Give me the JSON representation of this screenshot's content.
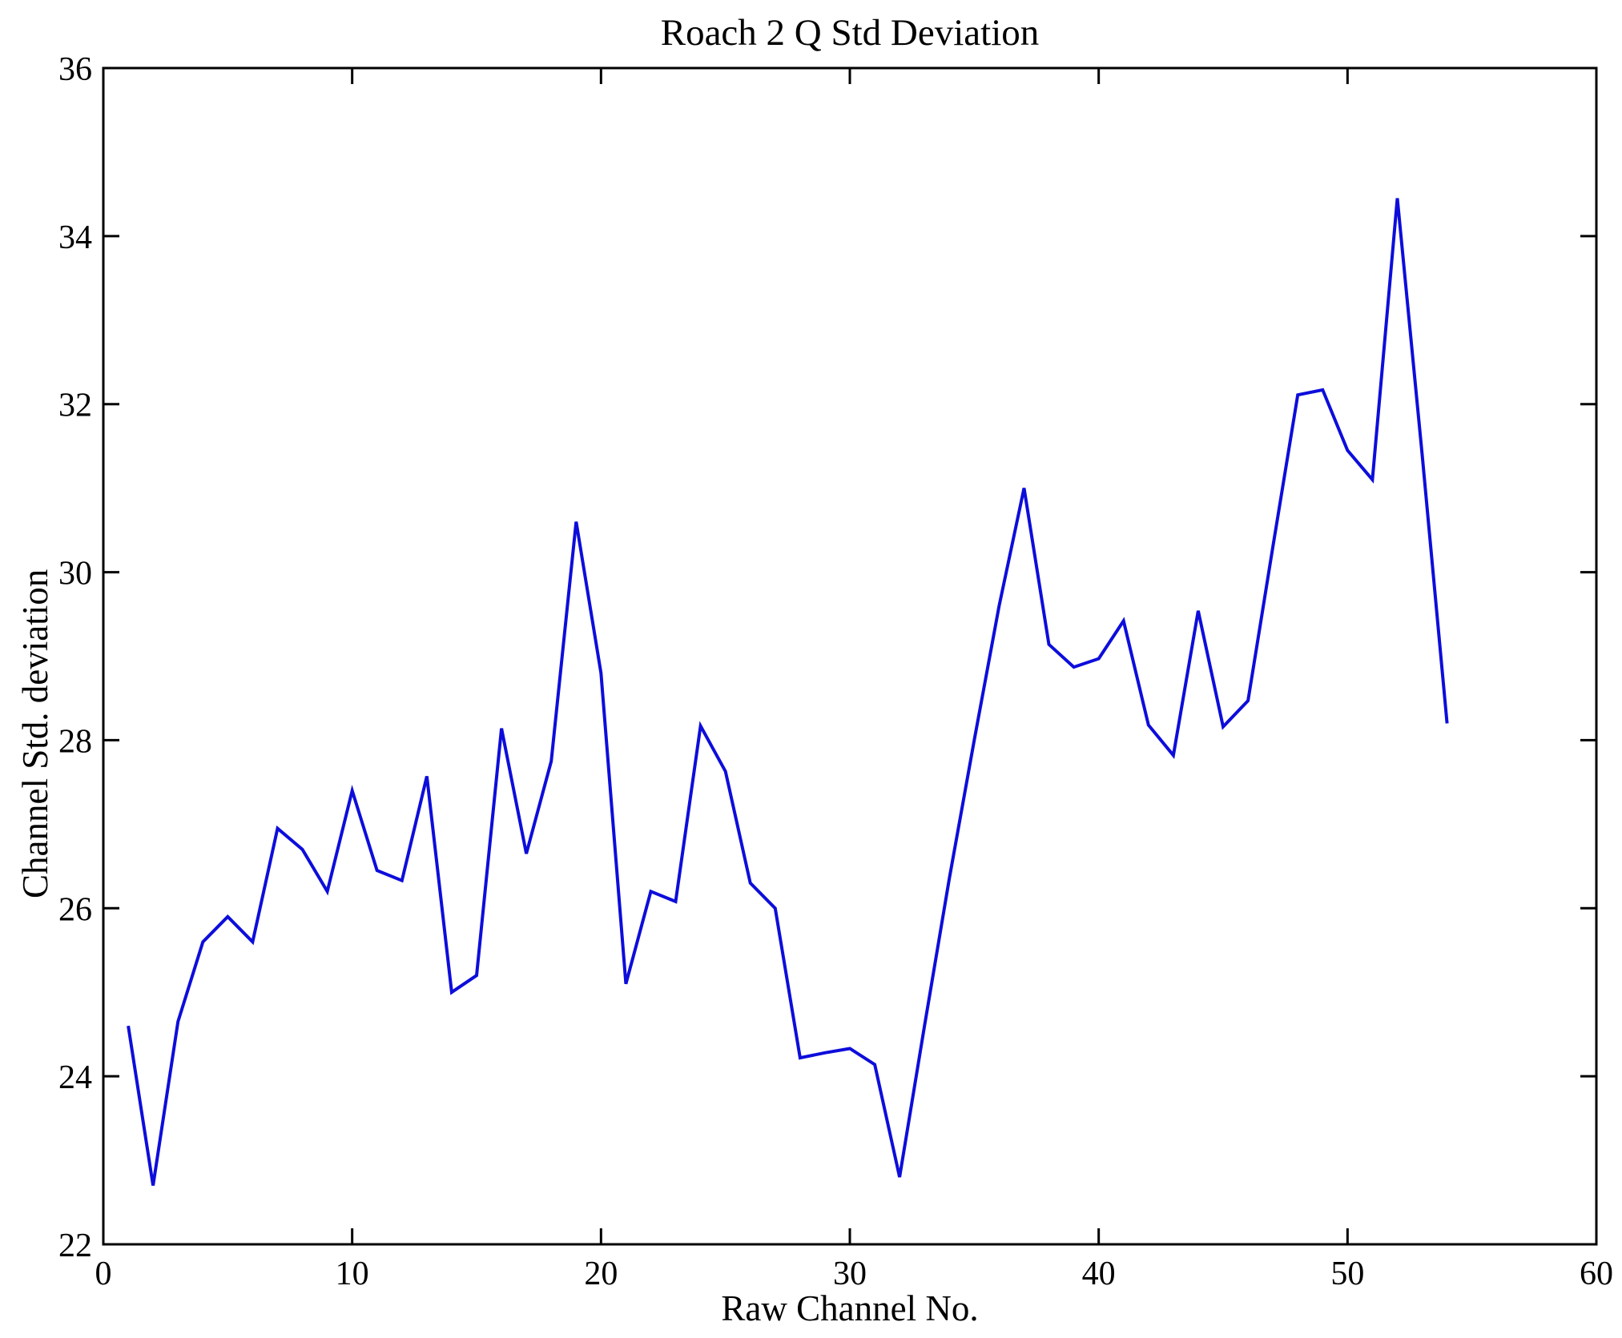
{
  "figure": {
    "background": "#ffffff",
    "axis_color": "#000000",
    "tick_label_font_px": 42
  },
  "chart_data": {
    "type": "line",
    "title": "Roach 2 Q Std Deviation",
    "xlabel": "Raw Channel No.",
    "ylabel": "Channel Std. deviation",
    "xlim": [
      0,
      60
    ],
    "ylim": [
      22,
      36
    ],
    "x_ticks": [
      0,
      10,
      20,
      30,
      40,
      50,
      60
    ],
    "y_ticks": [
      22,
      24,
      26,
      28,
      30,
      32,
      34,
      36
    ],
    "grid": false,
    "legend_position": "none",
    "line_color": "#0d0ddb",
    "series": [
      {
        "name": "Channel Std. deviation",
        "x": [
          1,
          2,
          3,
          4,
          5,
          6,
          7,
          8,
          9,
          10,
          11,
          12,
          13,
          14,
          15,
          16,
          17,
          18,
          19,
          20,
          21,
          22,
          23,
          24,
          25,
          26,
          27,
          28,
          29,
          30,
          31,
          32,
          33,
          34,
          35,
          36,
          37,
          38,
          39,
          40,
          41,
          42,
          43,
          44,
          45,
          46,
          47,
          48,
          49,
          50,
          51,
          52,
          53,
          54
        ],
        "values": [
          24.6,
          22.7,
          24.65,
          25.6,
          25.9,
          25.6,
          26.95,
          26.7,
          26.2,
          27.4,
          26.45,
          26.33,
          27.57,
          25.0,
          25.2,
          28.14,
          26.65,
          27.75,
          30.6,
          28.8,
          25.1,
          26.2,
          26.08,
          28.17,
          27.63,
          26.3,
          26.0,
          24.22,
          24.28,
          24.33,
          24.14,
          22.8,
          24.6,
          26.36,
          28.0,
          29.6,
          31.0,
          29.14,
          28.87,
          28.97,
          29.42,
          28.18,
          27.82,
          29.54,
          28.16,
          28.47,
          30.3,
          32.11,
          32.17,
          31.45,
          31.1,
          34.45,
          31.4,
          28.2
        ]
      }
    ]
  }
}
